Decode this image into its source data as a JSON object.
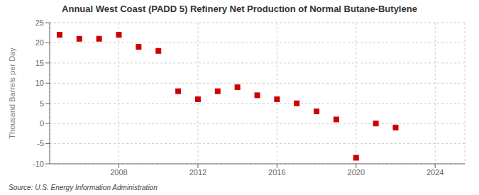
{
  "chart_data": {
    "type": "scatter",
    "title": "Annual West Coast (PADD 5) Refinery Net Production of Normal Butane-Butylene",
    "ylabel": "Thousand Barrels per Day",
    "annotations": [
      "Source: U.S. Energy Information Administration"
    ],
    "x": [
      2005,
      2006,
      2007,
      2008,
      2009,
      2010,
      2011,
      2012,
      2013,
      2014,
      2015,
      2016,
      2017,
      2018,
      2019,
      2020,
      2021,
      2022
    ],
    "values": [
      22.0,
      21.0,
      21.0,
      22.0,
      19.0,
      18.0,
      8.0,
      6.0,
      8.0,
      9.0,
      7.0,
      6.0,
      5.0,
      3.0,
      1.0,
      -8.5,
      0.0,
      -1.0
    ],
    "color": "#cc0000",
    "marker": "square",
    "xlim": [
      2004.5,
      2025.5
    ],
    "xticks": [
      2008,
      2012,
      2016,
      2020,
      2024
    ],
    "ylim": [
      -10,
      25
    ],
    "yticks": [
      -10,
      -5,
      0,
      5,
      10,
      15,
      20,
      25
    ],
    "grid": true
  }
}
